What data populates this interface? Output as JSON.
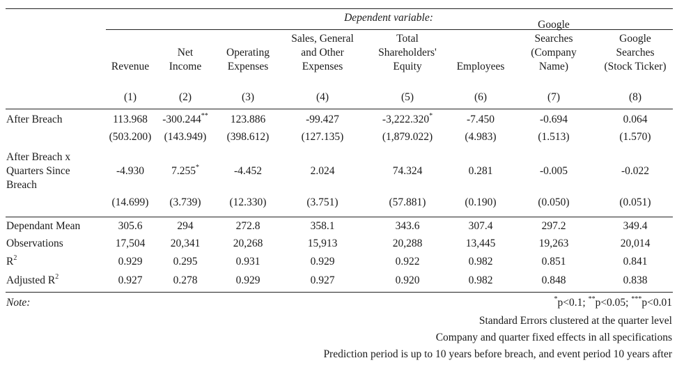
{
  "header": {
    "dependent_variable": "Dependent variable:",
    "columns": [
      {
        "name": [
          "Revenue"
        ],
        "num": "(1)"
      },
      {
        "name": [
          "Net",
          "Income"
        ],
        "num": "(2)"
      },
      {
        "name": [
          "Operating",
          "Expenses"
        ],
        "num": "(3)"
      },
      {
        "name": [
          "Sales, General",
          "and Other",
          "Expenses"
        ],
        "num": "(4)"
      },
      {
        "name": [
          "Total",
          "Shareholders'",
          "Equity"
        ],
        "num": "(5)"
      },
      {
        "name": [
          "Employees"
        ],
        "num": "(6)"
      },
      {
        "name": [
          "Google",
          "Searches",
          "(Company",
          "Name)"
        ],
        "num": "(7)"
      },
      {
        "name": [
          "Google",
          "Searches",
          "(Stock Ticker)"
        ],
        "num": "(8)"
      }
    ]
  },
  "rows": {
    "after_breach": {
      "label": "After Breach",
      "coef": [
        {
          "v": "113.968",
          "s": ""
        },
        {
          "v": "-300.244",
          "s": "**"
        },
        {
          "v": "123.886",
          "s": ""
        },
        {
          "v": "-99.427",
          "s": ""
        },
        {
          "v": "-3,222.320",
          "s": "*"
        },
        {
          "v": "-7.450",
          "s": ""
        },
        {
          "v": "-0.694",
          "s": ""
        },
        {
          "v": "0.064",
          "s": ""
        }
      ],
      "se": [
        "(503.200)",
        "(143.949)",
        "(398.612)",
        "(127.135)",
        "(1,879.022)",
        "(4.983)",
        "(1.513)",
        "(1.570)"
      ]
    },
    "interaction": {
      "label": [
        "After Breach x",
        "Quarters Since",
        "Breach"
      ],
      "coef": [
        {
          "v": "-4.930",
          "s": ""
        },
        {
          "v": "7.255",
          "s": "*"
        },
        {
          "v": "-4.452",
          "s": ""
        },
        {
          "v": "2.024",
          "s": ""
        },
        {
          "v": "74.324",
          "s": ""
        },
        {
          "v": "0.281",
          "s": ""
        },
        {
          "v": "-0.005",
          "s": ""
        },
        {
          "v": "-0.022",
          "s": ""
        }
      ],
      "se": [
        "(14.699)",
        "(3.739)",
        "(12.330)",
        "(3.751)",
        "(57.881)",
        "(0.190)",
        "(0.050)",
        "(0.051)"
      ]
    }
  },
  "stats": [
    {
      "label": "Dependant Mean",
      "sup": "",
      "values": [
        "305.6",
        "294",
        "272.8",
        "358.1",
        "343.6",
        "307.4",
        "297.2",
        "349.4"
      ]
    },
    {
      "label": "Observations",
      "sup": "",
      "values": [
        "17,504",
        "20,341",
        "20,268",
        "15,913",
        "20,288",
        "13,445",
        "19,263",
        "20,014"
      ]
    },
    {
      "label": "R",
      "sup": "2",
      "values": [
        "0.929",
        "0.295",
        "0.931",
        "0.929",
        "0.922",
        "0.982",
        "0.851",
        "0.841"
      ]
    },
    {
      "label": "Adjusted R",
      "sup": "2",
      "values": [
        "0.927",
        "0.278",
        "0.929",
        "0.927",
        "0.920",
        "0.982",
        "0.848",
        "0.838"
      ]
    }
  ],
  "notes": {
    "label": "Note:",
    "sig_parts": [
      {
        "sup": "*",
        "text": "p<0.1; "
      },
      {
        "sup": "**",
        "text": "p<0.05; "
      },
      {
        "sup": "***",
        "text": "p<0.01"
      }
    ],
    "lines": [
      "Standard Errors clustered at the quarter level",
      "Company and quarter fixed effects in all specifications",
      "Prediction period is up to 10 years before breach, and event period 10 years after"
    ]
  }
}
